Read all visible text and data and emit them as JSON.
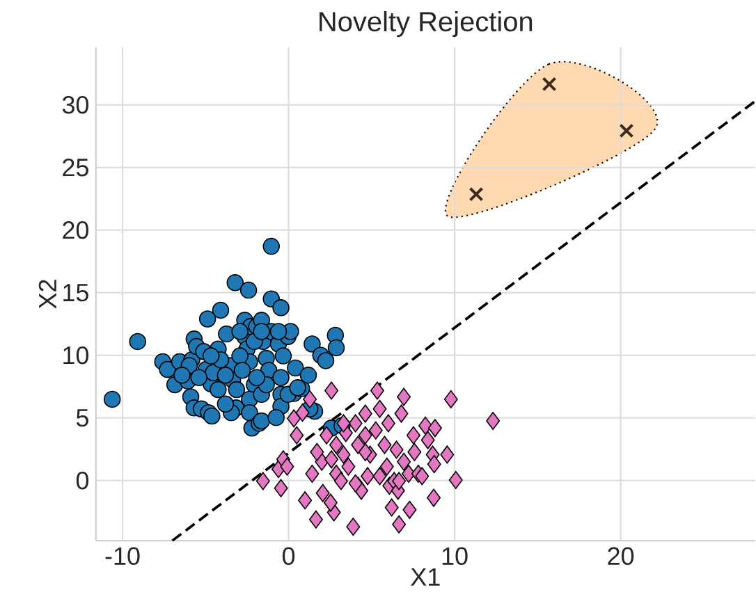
{
  "chart_data": {
    "type": "scatter",
    "title": "Novelty Rejection",
    "xlabel": "X1",
    "ylabel": "X2",
    "xlim": [
      -11.6,
      28.1
    ],
    "ylim": [
      -4.8,
      34.6
    ],
    "xticks": [
      -10,
      0,
      10,
      20
    ],
    "yticks": [
      0,
      5,
      10,
      15,
      20,
      25,
      30
    ],
    "grid": true,
    "series": [
      {
        "type": "scatter",
        "marker": "circle",
        "color": "#1f77b4",
        "x": [
          -10.62,
          -9.09,
          -7.58,
          -7.29,
          -6.56,
          -5.83,
          -5.69,
          -5.54,
          -5.11,
          -6.85,
          -6.07,
          -5.89,
          -5.69,
          -5.25,
          -4.82,
          -4.62,
          -4.96,
          -4.67,
          -4.53,
          -4.24,
          -4.09,
          -4.88,
          -3.74,
          -3.22,
          -2.41,
          -3.51,
          -3.37,
          -3.13,
          -3.16,
          -3.45,
          -2.64,
          -2.64,
          -2.5,
          -2.35,
          -2.06,
          -2.35,
          -2.35,
          -2.21,
          -1.77,
          -1.63,
          -2.29,
          -1.92,
          -1.63,
          -1.54,
          -1.34,
          -1.19,
          -1.04,
          -1.04,
          -0.46,
          -1.04,
          -0.61,
          -0.32,
          -0.03,
          0.12,
          0.41,
          0.32,
          0.78,
          1.19,
          1.42,
          1.94,
          2.24,
          2.82,
          2.87,
          -0.46,
          -0.46,
          -0.75,
          1.57,
          1.28,
          -4.24,
          -3.8,
          -2.93,
          -3.8,
          -2.06,
          -2.79,
          -1.63,
          -1.34,
          -0.03,
          0.55,
          -4.09,
          -4.67,
          -2.93,
          -1.63,
          -0.61,
          -0.46,
          -5.98,
          -5.4,
          -6.42,
          2.58,
          3.22,
          -1.92
        ],
        "values": [
          6.49,
          11.1,
          9.49,
          8.87,
          9.49,
          9.64,
          11.3,
          10.7,
          10.3,
          7.65,
          7.95,
          6.68,
          5.8,
          5.72,
          5.42,
          5.15,
          8.87,
          7.72,
          8.61,
          10.5,
          13.6,
          12.9,
          11.7,
          15.8,
          15.2,
          9.18,
          8.03,
          7.26,
          5.8,
          5.42,
          12.8,
          11.5,
          10.5,
          9.49,
          7.65,
          6.49,
          5.42,
          4.19,
          4.57,
          4.76,
          12.3,
          12.3,
          12.8,
          11.1,
          9.76,
          8.8,
          18.7,
          14.5,
          13.8,
          11.9,
          10.9,
          9.95,
          11.5,
          11.9,
          8.99,
          6.95,
          7.34,
          8.41,
          10.9,
          10.0,
          9.57,
          11.6,
          10.6,
          6.88,
          5.92,
          5.03,
          5.53,
          5.72,
          7.26,
          8.41,
          9.95,
          6.11,
          11.1,
          8.8,
          6.88,
          7.65,
          6.88,
          7.41,
          9.64,
          9.95,
          11.9,
          11.9,
          11.9,
          8.22,
          9.18,
          8.22,
          8.41,
          4.19,
          4.38,
          8.22
        ]
      },
      {
        "type": "scatter",
        "marker": "diamond",
        "color": "#e377c2",
        "x": [
          -1.54,
          -0.46,
          -0.61,
          -0.32,
          -0.09,
          0.32,
          0.84,
          0.49,
          1.28,
          2.58,
          0.99,
          1.65,
          2.73,
          2.53,
          2.06,
          2.0,
          2.29,
          2.87,
          3.31,
          3.89,
          3.45,
          4.03,
          4.62,
          4.18,
          4.38,
          4.76,
          4.91,
          5.25,
          5.34,
          5.49,
          5.78,
          5.92,
          6.07,
          6.21,
          6.65,
          6.94,
          6.79,
          7.29,
          6.5,
          6.94,
          7.23,
          7.52,
          7.81,
          8.24,
          8.39,
          8.68,
          8.77,
          8.82,
          8.74,
          9.55,
          9.78,
          10.07,
          12.31,
          4.62,
          2.87,
          3.6,
          4.03,
          5.49,
          6.36,
          4.62,
          4.18,
          3.31,
          6.01,
          7.58,
          8.04,
          6.59,
          3.16,
          1.42,
          6.65,
          1.71,
          2.58
        ],
        "values": [
          -0.04,
          -0.61,
          0.92,
          1.69,
          1.11,
          4.96,
          5.42,
          3.61,
          6.49,
          7.18,
          -1.58,
          -3.11,
          -2.54,
          -1.77,
          -1.0,
          1.5,
          3.61,
          2.84,
          2.07,
          -3.69,
          3.8,
          4.57,
          5.34,
          -0.42,
          -0.81,
          0.35,
          2.07,
          4.0,
          7.18,
          5.72,
          2.84,
          1.11,
          -0.42,
          -2.15,
          -3.5,
          6.68,
          5.34,
          -2.34,
          2.46,
          1.5,
          0.54,
          3.61,
          0.54,
          4.38,
          3.23,
          2.07,
          1.31,
          4.19,
          -1.38,
          2.07,
          6.49,
          0.04,
          4.76,
          3.61,
          0.54,
          1.11,
          -0.23,
          0.35,
          -0.04,
          2.27,
          2.84,
          4.57,
          4.57,
          2.27,
          0.35,
          -0.81,
          -0.04,
          0.54,
          -0.04,
          2.27,
          1.69
        ]
      },
      {
        "type": "scatter",
        "marker": "cross",
        "color": "#3d2b1f",
        "x": [
          11.3,
          15.7,
          20.35
        ],
        "values": [
          22.86,
          31.66,
          27.93
        ]
      },
      {
        "type": "line",
        "marker": "none",
        "line_style": "dashed",
        "color": "#000000",
        "x": [
          -7.0,
          28.07
        ],
        "values": [
          -4.8,
          30.27
        ]
      }
    ]
  }
}
